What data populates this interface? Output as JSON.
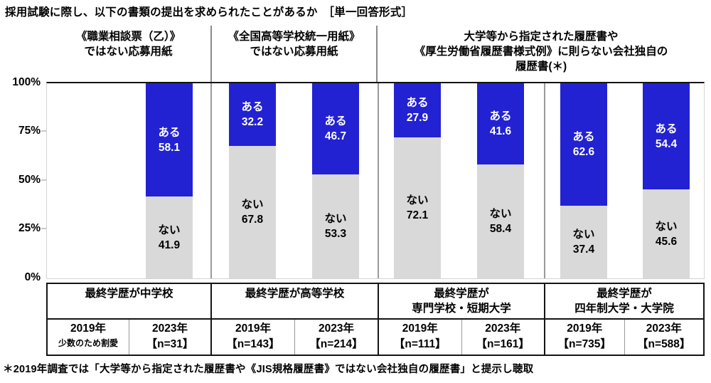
{
  "series_labels": {
    "aru": "ある",
    "nai": "ない"
  },
  "colors": {
    "aru_blue": "#2222d2",
    "nai_gray": "#d9d9d9",
    "frame_dark": "#141414",
    "separator_gray": "#9a9a9a"
  },
  "y_axis_ticks": [
    "100%",
    "75%",
    "50%",
    "25%",
    "0%"
  ],
  "document_headers": [
    {
      "line1": "《職業相談票（乙）》",
      "line2": "ではない応募用紙",
      "line3": ""
    },
    {
      "line1": "《全国高等学校統一用紙》",
      "line2": "ではない応募用紙",
      "line3": ""
    },
    {
      "line1": "大学等から指定された履歴書や",
      "line2": "《厚生労働省履歴書様式例》に則らない会社独自の",
      "line3": "履歴書(＊)"
    }
  ],
  "footnote": "＊2019年調査では「大学等から指定された履歴書や《JIS規格履歴書》ではない会社独自の履歴書」と提示し聴取",
  "chart_data": {
    "type": "bar",
    "stacked": true,
    "orientation": "vertical",
    "title": "採用試験に際し、以下の書類の提出を求められたことがあるか　［単一回答形式］",
    "value_unit": "%",
    "ylim": [
      0,
      100
    ],
    "y_ticks": [
      "0%",
      "25%",
      "50%",
      "75%",
      "100%"
    ],
    "grid": false,
    "series": [
      "ある",
      "ない"
    ],
    "groups": [
      {
        "education_line1": "最終学歴が中学校",
        "education_line2": "",
        "col2019": {
          "year": "2019年",
          "sub": "少数のため割愛",
          "sub_is_note": true,
          "aru": null,
          "nai": null
        },
        "col2023": {
          "year": "2023年",
          "sub": "【n=31】",
          "aru": 58.1,
          "nai": 41.9
        }
      },
      {
        "education_line1": "最終学歴が高等学校",
        "education_line2": "",
        "col2019": {
          "year": "2019年",
          "sub": "【n=143】",
          "aru": 32.2,
          "nai": 67.8
        },
        "col2023": {
          "year": "2023年",
          "sub": "【n=214】",
          "aru": 46.7,
          "nai": 53.3
        }
      },
      {
        "education_line1": "最終学歴が",
        "education_line2": "専門学校・短期大学",
        "col2019": {
          "year": "2019年",
          "sub": "【n=111】",
          "aru": 27.9,
          "nai": 72.1
        },
        "col2023": {
          "year": "2023年",
          "sub": "【n=161】",
          "aru": 41.6,
          "nai": 58.4
        }
      },
      {
        "education_line1": "最終学歴が",
        "education_line2": "四年制大学・大学院",
        "col2019": {
          "year": "2019年",
          "sub": "【n=735】",
          "aru": 62.6,
          "nai": 37.4
        },
        "col2023": {
          "year": "2023年",
          "sub": "【n=588】",
          "aru": 54.4,
          "nai": 45.6
        }
      }
    ]
  }
}
